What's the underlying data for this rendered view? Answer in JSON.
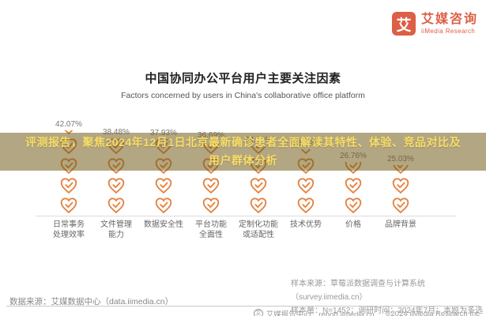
{
  "brand": {
    "logo_glyph": "艾",
    "name_cn": "艾媒咨询",
    "name_en": "iiMedia Research",
    "accent_color": "#DD5F45"
  },
  "chart_data": {
    "type": "bar",
    "variant": "pictogram-stacked-heart-check-icons",
    "title": "中国协同办公平台用户主要关注因素",
    "subtitle": "Factors concerned by users in China's collaborative office platform",
    "categories": [
      "日常事务\n处理效率",
      "文件管理\n能力",
      "数据安全性",
      "平台功能\n全面性",
      "定制化功能\n或适配性",
      "技术优势",
      "价格",
      "品牌背景"
    ],
    "values": [
      42.07,
      38.48,
      37.93,
      36.69,
      34.34,
      32.78,
      26.76,
      25.03
    ],
    "unit": "%",
    "ylim": [
      0,
      45
    ],
    "grid": false,
    "legend": false,
    "icon_color": "#E4823F",
    "value_label_color": "#777777"
  },
  "overlay": {
    "text": "评测报告，聚焦2024年12月1日北京最新确诊患者全面解读其特性、体验、竞品对比及\n用户群体分析",
    "text_color": "#F9DD65",
    "band_color": "rgba(110,88,18,0.53)"
  },
  "footnotes": {
    "data_source": "数据来源：艾媒数据中心（data.iimedia.cn）",
    "sample_source": "样本来源：草莓派数据调查与计算系统（survey.iimedia.cn）",
    "sample_info": "样本量：N=1452；调研时间：2024年7月；本题为多选"
  },
  "footer": {
    "report_center": "艾媒报告中心：report.iimedia.cn",
    "copyright": "©2024 iiMedia Research Inc"
  }
}
